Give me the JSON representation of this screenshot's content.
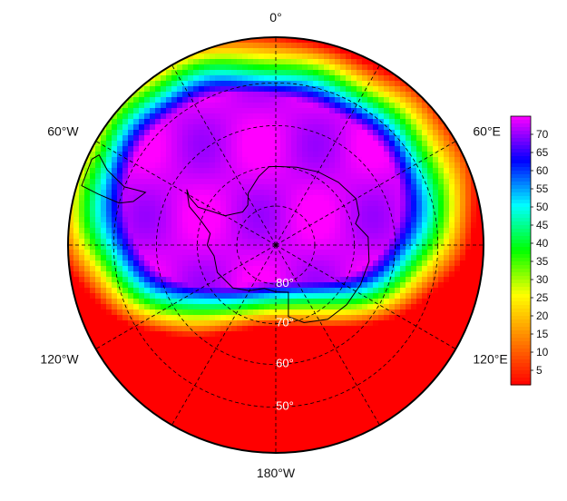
{
  "map": {
    "projection": "south-polar stereographic",
    "longitude_labels": [
      {
        "text": "0°",
        "lon": 0
      },
      {
        "text": "60°E",
        "lon": 60
      },
      {
        "text": "120°E",
        "lon": 120
      },
      {
        "text": "180°W",
        "lon": 180
      },
      {
        "text": "120°W",
        "lon": -120
      },
      {
        "text": "60°W",
        "lon": -60
      }
    ],
    "latitude_labels": [
      {
        "text": "80°",
        "lat": -80
      },
      {
        "text": "70°",
        "lat": -70
      },
      {
        "text": "60°",
        "lat": -60
      },
      {
        "text": "50°",
        "lat": -50
      }
    ],
    "graticule_latitudes": [
      -50,
      -60,
      -70,
      -80
    ],
    "graticule_longitude_step": 30,
    "min_latitude": -40
  },
  "colorbar": {
    "ticks": [
      "70",
      "65",
      "60",
      "55",
      "50",
      "45",
      "40",
      "35",
      "30",
      "25",
      "20",
      "15",
      "10",
      "5"
    ],
    "min": 1,
    "max": 75,
    "colormap": [
      "#ff0000",
      "#ff8000",
      "#ffff00",
      "#00ff00",
      "#00ffff",
      "#0000ff",
      "#ff00ff"
    ]
  },
  "field": {
    "description_units": "value",
    "hole_center_lat": -78,
    "hole_center_lon": -20,
    "notes": "low values (red/yellow) at outer ring; high values (magenta) over the polar cap"
  }
}
